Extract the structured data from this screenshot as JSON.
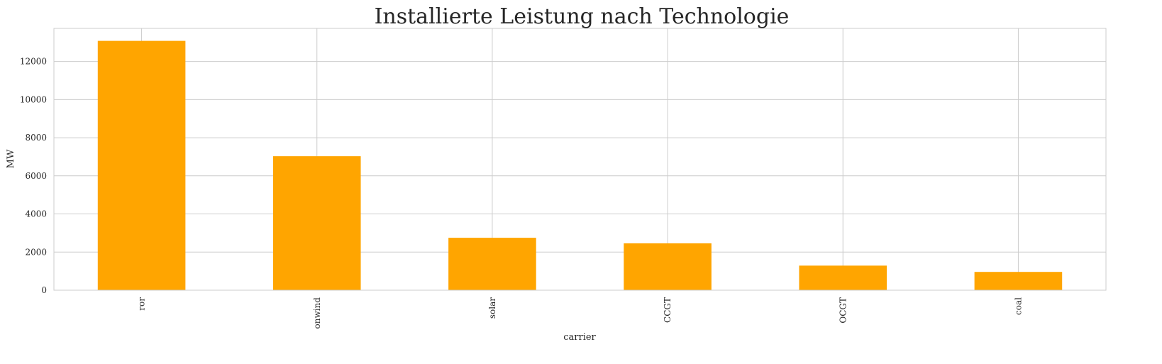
{
  "chart_data": {
    "type": "bar",
    "title": "Installierte Leistung nach Technologie",
    "xlabel": "carrier",
    "ylabel": "MW",
    "categories": [
      "ror",
      "onwind",
      "solar",
      "CCGT",
      "OCGT",
      "coal"
    ],
    "values": [
      13080,
      7030,
      2750,
      2460,
      1290,
      960
    ],
    "ylim": [
      0,
      13735
    ],
    "yticks": [
      0,
      2000,
      4000,
      6000,
      8000,
      10000,
      12000
    ],
    "grid": true,
    "bar_color": "#FFA500",
    "grid_color": "#cccccc"
  }
}
